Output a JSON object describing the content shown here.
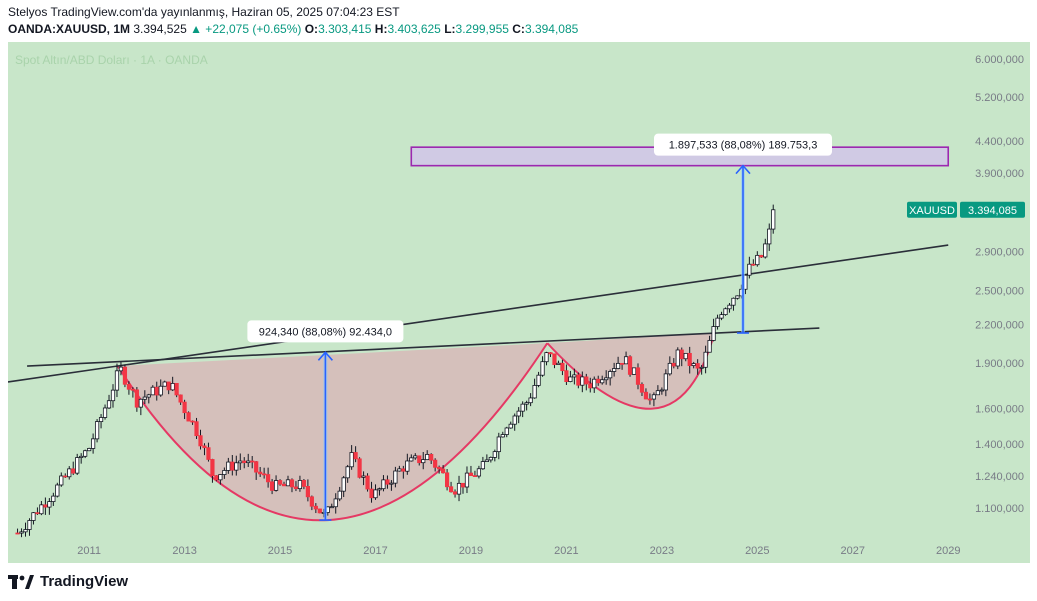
{
  "header": {
    "line1": "Stelyos TradingView.com'da yayınlanmış, Haziran 05, 2025 07:04:23 EST",
    "symbol": "OANDA:XAUUSD, 1M",
    "last": "3.394,525",
    "change": "▲ +22,075 (+0.65%)",
    "o_label": "O:",
    "o_value": "3.303,415",
    "h_label": "H:",
    "h_value": "3.403,625",
    "l_label": "L:",
    "l_value": "3.299,955",
    "c_label": "C:",
    "c_value": "3.394,085"
  },
  "watermark": "Spot Altın/ABD Doları · 1A · OANDA",
  "footer": {
    "brand": "TradingView"
  },
  "colors": {
    "background": "#c8e6c9",
    "up": "#089981",
    "down": "#f23645",
    "pattern_fill": "#d7b8b8",
    "arc": "#e53964",
    "arrow": "#2962ff",
    "target_zone": "#9c27b0"
  },
  "chart_data": {
    "type": "candlestick",
    "interval": "1M",
    "y_scale": "log",
    "ylim": [
      1000,
      6400
    ],
    "xlim": [
      2009.3,
      2029.1
    ],
    "x_ticks": [
      "2011",
      "2013",
      "2015",
      "2017",
      "2019",
      "2021",
      "2023",
      "2025",
      "2027",
      "2029"
    ],
    "x_tick_values": [
      2011,
      2013,
      2015,
      2017,
      2019,
      2021,
      2023,
      2025,
      2027,
      2029
    ],
    "y_ticks": [
      "6.000,000",
      "5.200,000",
      "4.400,000",
      "3.900,000",
      "2.900,000",
      "2.500,000",
      "2.200,000",
      "1.900,000",
      "1.600,000",
      "1.400,000",
      "1.240,000",
      "1.100,000"
    ],
    "y_tick_values": [
      6000,
      5200,
      4400,
      3900,
      2900,
      2500,
      2200,
      1900,
      1600,
      1400,
      1240,
      1100
    ],
    "last_price_label": {
      "symbol": "XAUUSD",
      "value": "3.394,085",
      "price": 3394.085
    },
    "anchors": [
      [
        2009.5,
        1000
      ],
      [
        2010.3,
        1180
      ],
      [
        2011.0,
        1380
      ],
      [
        2011.65,
        1860
      ],
      [
        2012.0,
        1650
      ],
      [
        2012.7,
        1760
      ],
      [
        2013.3,
        1450
      ],
      [
        2013.6,
        1240
      ],
      [
        2014.2,
        1320
      ],
      [
        2014.9,
        1190
      ],
      [
        2015.4,
        1200
      ],
      [
        2015.95,
        1060
      ],
      [
        2016.5,
        1330
      ],
      [
        2016.95,
        1150
      ],
      [
        2017.6,
        1290
      ],
      [
        2018.1,
        1340
      ],
      [
        2018.65,
        1180
      ],
      [
        2019.3,
        1290
      ],
      [
        2019.7,
        1500
      ],
      [
        2020.2,
        1650
      ],
      [
        2020.6,
        1970
      ],
      [
        2021.1,
        1780
      ],
      [
        2021.5,
        1760
      ],
      [
        2022.2,
        1940
      ],
      [
        2022.8,
        1630
      ],
      [
        2023.35,
        1980
      ],
      [
        2023.8,
        1830
      ],
      [
        2024.2,
        2300
      ],
      [
        2024.6,
        2500
      ],
      [
        2024.8,
        2700
      ],
      [
        2025.1,
        2850
      ],
      [
        2025.4,
        3394
      ]
    ],
    "drawings": {
      "long_trendline": [
        [
          2009.3,
          1770
        ],
        [
          2029.0,
          2970
        ]
      ],
      "neckline": [
        [
          2009.7,
          1880
        ],
        [
          2026.3,
          2170
        ]
      ],
      "cup_1": {
        "left": [
          2011.6,
          1880
        ],
        "bottom": [
          2016.0,
          1050
        ],
        "right": [
          2020.6,
          2050
        ]
      },
      "cup_2": {
        "left": [
          2020.6,
          2050
        ],
        "bottom": [
          2022.8,
          1600
        ],
        "right": [
          2024.1,
          2130
        ]
      },
      "measure_1": {
        "x": 2015.95,
        "from": 1050,
        "to": 1980,
        "label": "924,340 (88,08%) 92.434,0"
      },
      "measure_2": {
        "x": 2024.7,
        "from": 2130,
        "to": 4010,
        "label": "1.897,533 (88,08%) 189.753,3"
      },
      "target_zone": {
        "x_start": 2017.75,
        "x_end": 2029.0,
        "low": 4010,
        "high": 4300
      }
    }
  }
}
